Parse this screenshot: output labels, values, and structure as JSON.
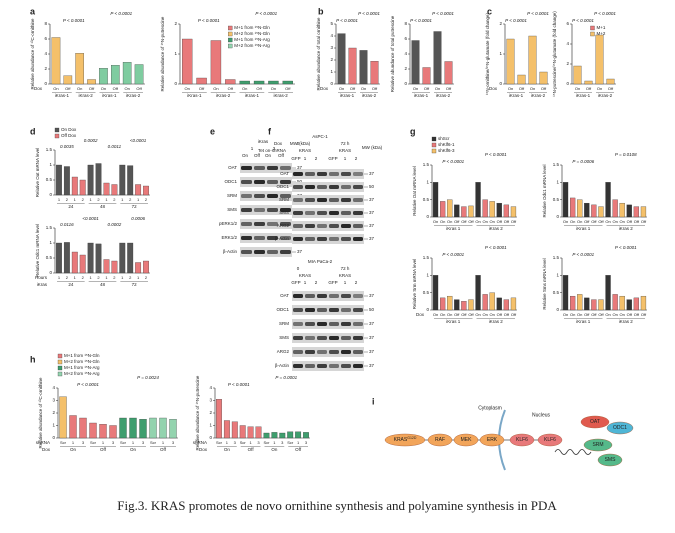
{
  "panel_letters": [
    "a",
    "b",
    "c",
    "d",
    "e",
    "f",
    "g",
    "h",
    "i"
  ],
  "charts": [
    {
      "ylabel": "Relative abundance of ¹³C-ornithine",
      "ylim": [
        0,
        8
      ],
      "yticks": [
        0,
        2,
        4,
        6,
        8
      ],
      "categories": [
        "On",
        "Off",
        "On",
        "Off",
        "On",
        "Off",
        "On",
        "Off"
      ],
      "values": [
        6.2,
        1.1,
        4.1,
        0.6,
        2.1,
        2.5,
        2.9,
        2.6
      ],
      "colors": [
        "#f4c06a",
        "#f4c06a",
        "#f4c06a",
        "#f4c06a",
        "#7fcca0",
        "#7fcca0",
        "#7fcca0",
        "#7fcca0"
      ],
      "annotations": [
        "P < 0.0001",
        "P < 0.0001"
      ],
      "groups": [
        "iKras-1",
        "iKras-2",
        "iKras-1",
        "iKras-2"
      ],
      "row_labels": [
        "Dox"
      ]
    },
    {
      "ylabel": "Relative abundance of ¹⁵N-putrescine",
      "ylim": [
        0,
        2
      ],
      "yticks": [
        0,
        1,
        2
      ],
      "categories": [
        "On",
        "Off",
        "On",
        "Off",
        "On",
        "Off",
        "On",
        "Off"
      ],
      "values": [
        1.5,
        0.2,
        1.45,
        0.15,
        0.1,
        0.1,
        0.1,
        0.1
      ],
      "colors": [
        "#e8797a",
        "#e8797a",
        "#e8797a",
        "#e8797a",
        "#3f9e6e",
        "#3f9e6e",
        "#3f9e6e",
        "#3f9e6e"
      ],
      "annotations": [
        "P < 0.0001",
        "P < 0.0001"
      ],
      "groups": [
        "iKras-1",
        "iKras-2",
        "iKras-1",
        "iKras-2"
      ],
      "legend": [
        {
          "name": "M+1 from ¹⁵N-Gln",
          "color": "#e8797a"
        },
        {
          "name": "M+2 from ¹⁵N-Gln",
          "color": "#f4c06a"
        },
        {
          "name": "M+1 from ¹⁵N-Arg",
          "color": "#3f9e6e"
        },
        {
          "name": "M+2 from ¹⁵N-Arg",
          "color": "#93d3ae"
        }
      ],
      "legend_pos": "inside"
    },
    {
      "ylabel": "Relative abundance of total ornithine",
      "ylim": [
        0,
        5
      ],
      "yticks": [
        0,
        1,
        2,
        3,
        4,
        5
      ],
      "categories": [
        "On",
        "Off",
        "On",
        "Off"
      ],
      "values": [
        4.2,
        3.0,
        2.8,
        1.9
      ],
      "colors": [
        "#555555",
        "#e8797a",
        "#555555",
        "#e8797a"
      ],
      "annotations": [
        "P < 0.0001",
        "P < 0.0001"
      ],
      "groups": [
        "iKras-1",
        "iKras-2"
      ],
      "row_labels": [
        "Dox"
      ]
    },
    {
      "ylabel": "Relative abundance of total putrescine",
      "ylim": [
        0,
        8
      ],
      "yticks": [
        0,
        2,
        4,
        6,
        8
      ],
      "categories": [
        "On",
        "Off",
        "On",
        "Off"
      ],
      "values": [
        5.8,
        2.2,
        7.0,
        3.0
      ],
      "colors": [
        "#555555",
        "#e8797a",
        "#555555",
        "#e8797a"
      ],
      "annotations": [
        "P < 0.0001",
        "P < 0.0001"
      ],
      "groups": [
        "iKras-1",
        "iKras-2"
      ]
    },
    {
      "ylabel": "¹⁵N-ornithine/¹⁵N-glutamate (fold change)",
      "ylim": [
        0,
        2
      ],
      "yticks": [
        0,
        1,
        2
      ],
      "categories": [
        "On",
        "Off",
        "On",
        "Off"
      ],
      "values": [
        1.5,
        0.3,
        1.6,
        0.4
      ],
      "colors": [
        "#f4c06a",
        "#f4c06a",
        "#f4c06a",
        "#f4c06a"
      ],
      "annotations": [
        "P < 0.0001",
        "P < 0.0001"
      ],
      "groups": [
        "iKras-1",
        "iKras-2"
      ],
      "row_labels": [
        "Dox"
      ]
    },
    {
      "ylabel": "¹⁵N-putrescine/¹⁵N-glutamate (fold change)",
      "ylim": [
        0,
        6
      ],
      "yticks": [
        0,
        2,
        4,
        6
      ],
      "categories": [
        "On",
        "Off",
        "On",
        "Off"
      ],
      "values": [
        1.8,
        0.3,
        4.9,
        0.5
      ],
      "colors": [
        "#f4c06a",
        "#f4c06a",
        "#f4c06a",
        "#f4c06a"
      ],
      "annotations": [
        "P < 0.0001",
        "P < 0.0001"
      ],
      "groups": [
        "iKras-1",
        "iKras-2"
      ],
      "legend": [
        {
          "name": "M+1",
          "color": "#e8797a"
        },
        {
          "name": "M+2",
          "color": "#f4c06a"
        }
      ],
      "legend_pos": "inside"
    },
    {
      "ylabel": "Relative Oat mRNA level",
      "ylim": [
        0,
        1.5
      ],
      "yticks": [
        0,
        0.5,
        1,
        1.5
      ],
      "categories": [
        "1",
        "2",
        "1",
        "2",
        "1",
        "2",
        "1",
        "2",
        "1",
        "2",
        "1",
        "2"
      ],
      "values": [
        1,
        0.95,
        0.6,
        0.5,
        1,
        1.05,
        0.4,
        0.35,
        1,
        0.98,
        0.35,
        0.3
      ],
      "colors": [
        "#555555",
        "#555555",
        "#e8797a",
        "#e8797a",
        "#555555",
        "#555555",
        "#e8797a",
        "#e8797a",
        "#555555",
        "#555555",
        "#e8797a",
        "#e8797a"
      ],
      "annotations": [
        "0.0035",
        "0.0002",
        "0.0011",
        "<0.0001"
      ],
      "groups": [
        "24",
        "48",
        "72"
      ],
      "legend": [
        {
          "name": "On Dox",
          "color": "#555555"
        },
        {
          "name": "Off Dox",
          "color": "#e8797a"
        }
      ],
      "legend_pos": "top"
    },
    {
      "ylabel": "Relative Odc1 mRNA level",
      "ylim": [
        0,
        1.5
      ],
      "yticks": [
        0,
        0.5,
        1,
        1.5
      ],
      "categories": [
        "1",
        "2",
        "1",
        "2",
        "1",
        "2",
        "1",
        "2",
        "1",
        "2",
        "1",
        "2"
      ],
      "values": [
        1,
        1.02,
        0.7,
        0.6,
        1,
        0.97,
        0.45,
        0.4,
        1,
        1.0,
        0.35,
        0.4
      ],
      "colors": [
        "#555555",
        "#555555",
        "#e8797a",
        "#e8797a",
        "#555555",
        "#555555",
        "#e8797a",
        "#e8797a",
        "#555555",
        "#555555",
        "#e8797a",
        "#e8797a"
      ],
      "annotations": [
        "0.0116",
        "<0.0001",
        "0.0002",
        "0.0006"
      ],
      "groups": [
        "24",
        "48",
        "72"
      ],
      "row_labels": [
        "Hours",
        "iKras"
      ]
    },
    {
      "ylabel": "Relative Oat mRNA level",
      "ylim": [
        0,
        1.5
      ],
      "yticks": [
        0,
        0.5,
        1,
        1.5
      ],
      "categories": [
        "On",
        "On",
        "On",
        "Off",
        "Off",
        "Off",
        "On",
        "On",
        "On",
        "Off",
        "Off",
        "Off"
      ],
      "values": [
        1,
        0.45,
        0.5,
        0.35,
        0.3,
        0.32,
        1,
        0.5,
        0.45,
        0.4,
        0.35,
        0.3
      ],
      "colors": [
        "#333333",
        "#e8797a",
        "#f4c06a",
        "#333333",
        "#e8797a",
        "#f4c06a",
        "#333333",
        "#e8797a",
        "#f4c06a",
        "#333333",
        "#e8797a",
        "#f4c06a"
      ],
      "annotations": [
        "P < 0.0001",
        "P < 0.0001"
      ],
      "groups": [
        "iKras 1",
        "iKras 2"
      ],
      "legend": [
        {
          "name": "shScr",
          "color": "#333333"
        },
        {
          "name": "shKlf6-1",
          "color": "#e8797a"
        },
        {
          "name": "shKlf6-3",
          "color": "#f4c06a"
        }
      ],
      "legend_pos": "top"
    },
    {
      "ylabel": "Relative Odc1 mRNA level",
      "ylim": [
        0,
        1.5
      ],
      "yticks": [
        0,
        0.5,
        1,
        1.5
      ],
      "categories": [
        "On",
        "On",
        "On",
        "Off",
        "Off",
        "Off",
        "On",
        "On",
        "On",
        "Off",
        "Off",
        "Off"
      ],
      "values": [
        1,
        0.55,
        0.5,
        0.4,
        0.35,
        0.3,
        1,
        0.5,
        0.4,
        0.35,
        0.3,
        0.3
      ],
      "colors": [
        "#333333",
        "#e8797a",
        "#f4c06a",
        "#333333",
        "#e8797a",
        "#f4c06a",
        "#333333",
        "#e8797a",
        "#f4c06a",
        "#333333",
        "#e8797a",
        "#f4c06a"
      ],
      "annotations": [
        "P = 0.0006",
        "P = 0.0108"
      ],
      "groups": [
        "iKras 1",
        "iKras 2"
      ]
    },
    {
      "ylabel": "Relative Srm mRNA level",
      "ylim": [
        0,
        1.5
      ],
      "yticks": [
        0,
        0.5,
        1,
        1.5
      ],
      "categories": [
        "On",
        "On",
        "On",
        "Off",
        "Off",
        "Off",
        "On",
        "On",
        "On",
        "Off",
        "Off",
        "Off"
      ],
      "values": [
        1,
        0.35,
        0.4,
        0.3,
        0.25,
        0.3,
        1,
        0.45,
        0.5,
        0.35,
        0.3,
        0.35
      ],
      "colors": [
        "#333333",
        "#e8797a",
        "#f4c06a",
        "#333333",
        "#e8797a",
        "#f4c06a",
        "#333333",
        "#e8797a",
        "#f4c06a",
        "#333333",
        "#e8797a",
        "#f4c06a"
      ],
      "annotations": [
        "P < 0.0001",
        "P < 0.0001"
      ],
      "groups": [
        "iKras 1",
        "iKras 2"
      ],
      "row_labels": [
        "Dox"
      ]
    },
    {
      "ylabel": "Relative Sms mRNA level",
      "ylim": [
        0,
        1.5
      ],
      "yticks": [
        0,
        0.5,
        1,
        1.5
      ],
      "categories": [
        "On",
        "On",
        "On",
        "Off",
        "Off",
        "Off",
        "On",
        "On",
        "On",
        "Off",
        "Off",
        "Off"
      ],
      "values": [
        1,
        0.4,
        0.45,
        0.35,
        0.3,
        0.3,
        1,
        0.45,
        0.4,
        0.3,
        0.35,
        0.4
      ],
      "colors": [
        "#333333",
        "#e8797a",
        "#f4c06a",
        "#333333",
        "#e8797a",
        "#f4c06a",
        "#333333",
        "#e8797a",
        "#f4c06a",
        "#333333",
        "#e8797a",
        "#f4c06a"
      ],
      "annotations": [
        "P < 0.0001",
        "P < 0.0001"
      ],
      "groups": [
        "iKras 1",
        "iKras 2"
      ]
    },
    {
      "ylabel": "Relative abundance of ¹³C-ornithine",
      "ylim": [
        0,
        4
      ],
      "yticks": [
        0,
        1,
        2,
        3,
        4
      ],
      "categories": [
        "Scr",
        "1",
        "3",
        "Scr",
        "1",
        "3",
        "Scr",
        "1",
        "3",
        "Scr",
        "1",
        "3"
      ],
      "values": [
        3.3,
        1.8,
        1.6,
        1.2,
        1.1,
        1.0,
        1.6,
        1.6,
        1.5,
        1.6,
        1.6,
        1.5
      ],
      "colors": [
        "#f4c06a",
        "#e8797a",
        "#e8797a",
        "#e8797a",
        "#e8797a",
        "#e8797a",
        "#3f9e6e",
        "#3f9e6e",
        "#3f9e6e",
        "#93d3ae",
        "#93d3ae",
        "#93d3ae"
      ],
      "annotations": [
        "P < 0.0001",
        "P = 0.0024"
      ],
      "groups": [
        "On",
        "Off",
        "On",
        "Off"
      ],
      "row_labels": [
        "shRNA",
        "Dox"
      ],
      "legend": [
        {
          "name": "M+1 from ¹⁵N-Gln",
          "color": "#e8797a"
        },
        {
          "name": "M+2 from ¹⁵N-Gln",
          "color": "#f4c06a"
        },
        {
          "name": "M+1 from ¹⁵N-Arg",
          "color": "#3f9e6e"
        },
        {
          "name": "M+2 from ¹⁵N-Arg",
          "color": "#93d3ae"
        }
      ],
      "legend_pos": "top"
    },
    {
      "ylabel": "Relative abundance of ¹⁵N-putrescine",
      "ylim": [
        0,
        4
      ],
      "yticks": [
        0,
        1,
        2,
        3,
        4
      ],
      "categories": [
        "Scr",
        "1",
        "3",
        "Scr",
        "1",
        "3",
        "Scr",
        "1",
        "3",
        "Scr",
        "1",
        "3"
      ],
      "values": [
        3.1,
        1.4,
        1.3,
        1.0,
        0.9,
        0.9,
        0.4,
        0.45,
        0.4,
        0.5,
        0.5,
        0.45
      ],
      "colors": [
        "#e8797a",
        "#e8797a",
        "#e8797a",
        "#e8797a",
        "#e8797a",
        "#e8797a",
        "#3f9e6e",
        "#3f9e6e",
        "#3f9e6e",
        "#3f9e6e",
        "#3f9e6e",
        "#3f9e6e"
      ],
      "annotations": [
        "P < 0.0001",
        "P = 0.0001"
      ],
      "groups": [
        "On",
        "Off",
        "On",
        "Off"
      ],
      "row_labels": [
        "shRNA",
        "Dox"
      ]
    }
  ],
  "blots": [
    {
      "header": [
        "iKras",
        "1",
        "2",
        "On",
        "Off",
        "On",
        "Off",
        "MW (kDa)"
      ],
      "rows": [
        {
          "label": "OAT",
          "mw": "37"
        },
        {
          "label": "ODC1",
          "mw": "50"
        },
        {
          "label": "SRM",
          "mw": "37"
        },
        {
          "label": "SMS",
          "mw": "37"
        },
        {
          "label": "pERK1/2",
          "mw": "37"
        },
        {
          "label": "ERK1/2",
          "mw": "37"
        },
        {
          "label": "β-Actin",
          "mw": "37"
        }
      ]
    },
    {
      "header": [
        "AsPC-1",
        "Dox",
        "0",
        "72 h",
        "Tet on-shRNA",
        "KRAS",
        "KRAS",
        "GFP",
        "1",
        "2",
        "GFP",
        "1",
        "2",
        "MW (kDa)"
      ],
      "rows": [
        {
          "label": "OAT",
          "mw": "37"
        },
        {
          "label": "ODC1",
          "mw": "50"
        },
        {
          "label": "SRM",
          "mw": "37"
        },
        {
          "label": "SMS",
          "mw": "37"
        },
        {
          "label": "ARG2",
          "mw": "37"
        },
        {
          "label": "β-Actin",
          "mw": "37"
        }
      ]
    },
    {
      "header": [
        "MIA PaCa-2",
        "0",
        "72 h",
        "KRAS",
        "KRAS",
        "GFP",
        "1",
        "2",
        "GFP",
        "1",
        "2"
      ],
      "rows": [
        {
          "label": "OAT",
          "mw": "37"
        },
        {
          "label": "ODC1",
          "mw": "50"
        },
        {
          "label": "SRM",
          "mw": "37"
        },
        {
          "label": "SMS",
          "mw": "37"
        },
        {
          "label": "ARG2",
          "mw": "37"
        },
        {
          "label": "β-Actin",
          "mw": "37"
        }
      ]
    }
  ],
  "diagram": {
    "regions": [
      "Cytoplasm",
      "Nucleus"
    ],
    "nodes": [
      {
        "label": "KRAS",
        "sup": "G12D"
      },
      {
        "label": "RAF"
      },
      {
        "label": "MEK"
      },
      {
        "label": "ERK"
      },
      {
        "label": "KLF6"
      },
      {
        "label": "KLF6"
      },
      {
        "label": "OAT"
      },
      {
        "label": "ODC1"
      },
      {
        "label": "SRM"
      },
      {
        "label": "SMS"
      }
    ]
  },
  "caption": "Fig.3. KRAS promotes de novo ornithine synthesis and polyamine synthesis in PDA"
}
